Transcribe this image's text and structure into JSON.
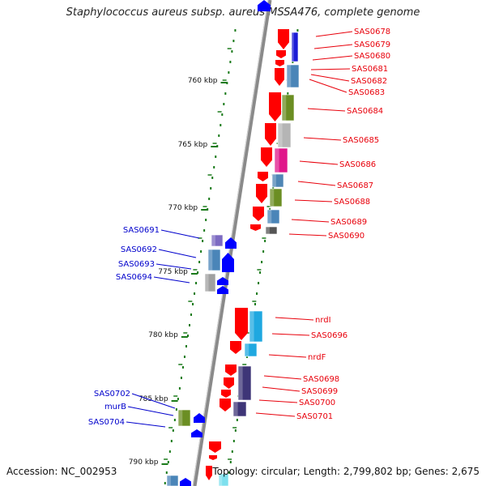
{
  "title": "Staphylococcus aureus subsp. aureus MSSA476, complete genome",
  "footer": {
    "accession": "Accession: NC_002953",
    "summary": "Topology: circular; Length: 2,799,802 bp; Genes: 2,675"
  },
  "colors": {
    "forward_label": "#e8000b",
    "reverse_label": "#0000cc",
    "backbone": "#8a8a8a",
    "tick": "#1a7a1a"
  },
  "scale_ticks": [
    "760 kbp",
    "765 kbp",
    "770 kbp",
    "775 kbp",
    "780 kbp",
    "785 kbp",
    "790 kbp"
  ],
  "forward_genes": [
    {
      "label": "SAS0678",
      "strand": "+"
    },
    {
      "label": "SAS0679",
      "strand": "+"
    },
    {
      "label": "SAS0680",
      "strand": "+"
    },
    {
      "label": "SAS0681",
      "strand": "+"
    },
    {
      "label": "SAS0682",
      "strand": "+"
    },
    {
      "label": "SAS0683",
      "strand": "+"
    },
    {
      "label": "SAS0684",
      "strand": "+"
    },
    {
      "label": "SAS0685",
      "strand": "+"
    },
    {
      "label": "SAS0686",
      "strand": "+"
    },
    {
      "label": "SAS0687",
      "strand": "+"
    },
    {
      "label": "SAS0688",
      "strand": "+"
    },
    {
      "label": "SAS0689",
      "strand": "+"
    },
    {
      "label": "SAS0690",
      "strand": "+"
    },
    {
      "label": "nrdI",
      "strand": "+"
    },
    {
      "label": "SAS0696",
      "strand": "+"
    },
    {
      "label": "nrdF",
      "strand": "+"
    },
    {
      "label": "SAS0698",
      "strand": "+"
    },
    {
      "label": "SAS0699",
      "strand": "+"
    },
    {
      "label": "SAS0700",
      "strand": "+"
    },
    {
      "label": "SAS0701",
      "strand": "+"
    }
  ],
  "reverse_genes": [
    {
      "label": "SAS0691",
      "strand": "-"
    },
    {
      "label": "SAS0692",
      "strand": "-"
    },
    {
      "label": "SAS0693",
      "strand": "-"
    },
    {
      "label": "SAS0694",
      "strand": "-"
    },
    {
      "label": "SAS0702",
      "strand": "-"
    },
    {
      "label": "murB",
      "strand": "-"
    },
    {
      "label": "SAS0704",
      "strand": "-"
    }
  ]
}
